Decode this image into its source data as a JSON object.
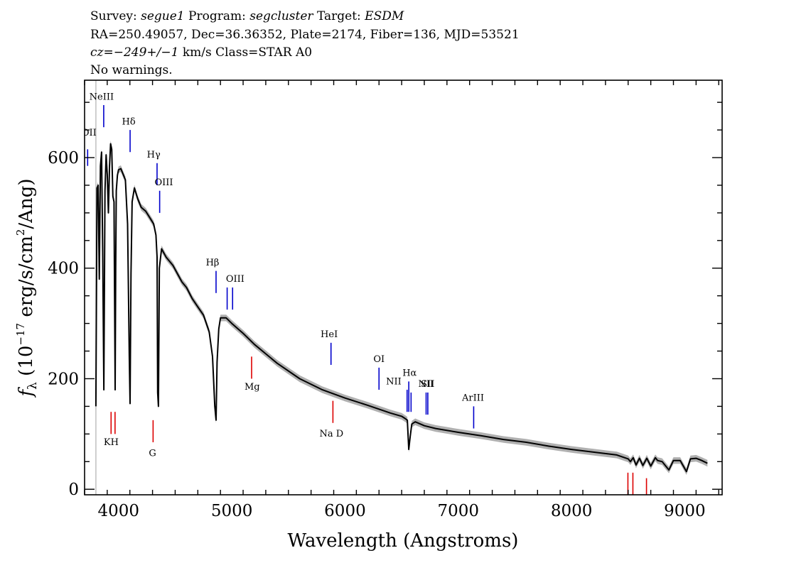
{
  "header": {
    "line1": {
      "survey_label": "Survey: ",
      "survey": "segue1",
      "program_label": " Program: ",
      "program": "segcluster",
      "target_label": " Target: ",
      "target": "ESDM"
    },
    "line2": "RA=250.49057, Dec=36.36352, Plate=2174, Fiber=136, MJD=53521",
    "line3": {
      "cz": "cz=−249+/−1",
      "rest": " km/s Class=STAR A0"
    },
    "line4": "No warnings."
  },
  "chart_data": {
    "type": "line",
    "title": "",
    "xlabel": "Wavelength (Angstroms)",
    "ylabel_prefix": "f",
    "ylabel_sub": "λ",
    "ylabel_unit_a": " (10",
    "ylabel_exp1": "−17",
    "ylabel_unit_b": " erg/s/cm",
    "ylabel_exp2": "2",
    "ylabel_unit_c": "/Ang)",
    "xlim": [
      3700,
      9330
    ],
    "ylim": [
      -10,
      740
    ],
    "x_ticks": [
      4000,
      5000,
      6000,
      7000,
      8000,
      9000
    ],
    "x_tick_labels": [
      "4000",
      "5000",
      "6000",
      "7000",
      "8000",
      "9000"
    ],
    "y_ticks": [
      0,
      200,
      400,
      600
    ],
    "y_tick_labels": [
      "0",
      "200",
      "400",
      "600"
    ],
    "grid": false,
    "colors": {
      "spectrum": "#000000",
      "error_band": "#b0b0b0",
      "emission": "#0000cc",
      "absorption": "#dd0000"
    },
    "spectrum": {
      "x": [
        3800,
        3810,
        3820,
        3830,
        3840,
        3850,
        3860,
        3870,
        3880,
        3890,
        3900,
        3910,
        3920,
        3930,
        3940,
        3950,
        3960,
        3965,
        3970,
        3975,
        3980,
        3990,
        4000,
        4020,
        4040,
        4060,
        4080,
        4095,
        4102,
        4110,
        4120,
        4140,
        4170,
        4200,
        4240,
        4280,
        4310,
        4330,
        4340,
        4345,
        4352,
        4360,
        4380,
        4420,
        4480,
        4520,
        4560,
        4600,
        4650,
        4700,
        4750,
        4800,
        4830,
        4850,
        4861,
        4870,
        4885,
        4900,
        4950,
        5000,
        5100,
        5200,
        5400,
        5600,
        5800,
        6000,
        6200,
        6400,
        6500,
        6530,
        6550,
        6563,
        6575,
        6590,
        6620,
        6700,
        6800,
        7000,
        7200,
        7400,
        7600,
        7800,
        8000,
        8200,
        8400,
        8500,
        8520,
        8545,
        8570,
        8600,
        8630,
        8665,
        8700,
        8740,
        8760,
        8800,
        8860,
        8900,
        8960,
        9015,
        9050,
        9100,
        9150,
        9200
      ],
      "y": [
        150,
        545,
        550,
        380,
        585,
        610,
        430,
        180,
        540,
        605,
        570,
        500,
        585,
        625,
        615,
        530,
        520,
        350,
        180,
        400,
        540,
        568,
        578,
        580,
        570,
        560,
        480,
        240,
        155,
        390,
        520,
        545,
        525,
        510,
        503,
        490,
        480,
        460,
        420,
        175,
        150,
        400,
        435,
        420,
        405,
        390,
        375,
        365,
        345,
        330,
        315,
        285,
        240,
        150,
        125,
        230,
        290,
        310,
        310,
        300,
        282,
        262,
        228,
        200,
        180,
        165,
        152,
        138,
        132,
        128,
        125,
        72,
        95,
        118,
        122,
        115,
        110,
        103,
        97,
        90,
        85,
        78,
        72,
        67,
        62,
        55,
        50,
        57,
        44,
        56,
        43,
        56,
        42,
        57,
        52,
        50,
        35,
        52,
        52,
        32,
        55,
        56,
        52,
        47
      ]
    },
    "lines": [
      {
        "name": "OII",
        "x": 3727,
        "y0": 585,
        "y1": 615,
        "label_y": 640,
        "label_x": 3740,
        "color": "emission"
      },
      {
        "name": "NeIII",
        "x": 3869,
        "y0": 655,
        "y1": 695,
        "label_y": 705,
        "label_x": 3850,
        "color": "emission"
      },
      {
        "name": "Hδ",
        "x": 4102,
        "y0": 610,
        "y1": 650,
        "label_y": 660,
        "label_x": 4090,
        "color": "emission"
      },
      {
        "name": "Hγ",
        "x": 4340,
        "y0": 550,
        "y1": 590,
        "label_y": 600,
        "label_x": 4310,
        "color": "emission"
      },
      {
        "name": "OIII",
        "x": 4363,
        "y0": 500,
        "y1": 540,
        "label_y": 550,
        "label_x": 4400,
        "color": "emission"
      },
      {
        "name": "Hβ",
        "x": 4861,
        "y0": 355,
        "y1": 395,
        "label_y": 405,
        "label_x": 4830,
        "color": "emission"
      },
      {
        "name": "OIII",
        "x": 4959,
        "y0": 325,
        "y1": 365,
        "label_y": 375,
        "label_x": 5030,
        "color": "emission"
      },
      {
        "name": "",
        "x": 5007,
        "y0": 325,
        "y1": 365,
        "label_y": 0,
        "label_x": 0,
        "color": "emission"
      },
      {
        "name": "HeI",
        "x": 5876,
        "y0": 225,
        "y1": 265,
        "label_y": 275,
        "label_x": 5860,
        "color": "emission"
      },
      {
        "name": "OI",
        "x": 6300,
        "y0": 180,
        "y1": 220,
        "label_y": 230,
        "label_x": 6300,
        "color": "emission"
      },
      {
        "name": "NII",
        "x": 6548,
        "y0": 140,
        "y1": 180,
        "label_y": 190,
        "label_x": 6430,
        "color": "emission"
      },
      {
        "name": "Hα",
        "x": 6563,
        "y0": 140,
        "y1": 195,
        "label_y": 205,
        "label_x": 6570,
        "color": "emission"
      },
      {
        "name": "NII",
        "x": 6583,
        "y0": 140,
        "y1": 175,
        "label_y": 185,
        "label_x": 6715,
        "color": "emission"
      },
      {
        "name": "SII",
        "x": 6716,
        "y0": 135,
        "y1": 175,
        "label_y": 185,
        "label_x": 6730,
        "color": "emission"
      },
      {
        "name": "",
        "x": 6731,
        "y0": 135,
        "y1": 175,
        "label_y": 0,
        "label_x": 0,
        "color": "emission"
      },
      {
        "name": "ArIII",
        "x": 7136,
        "y0": 110,
        "y1": 150,
        "label_y": 160,
        "label_x": 7130,
        "color": "emission"
      },
      {
        "name": "",
        "x": 3934,
        "y0": 100,
        "y1": 140,
        "label_y": 0,
        "label_x": 0,
        "color": "absorption"
      },
      {
        "name": "KH",
        "x": 3969,
        "y0": 100,
        "y1": 140,
        "label_y": 80,
        "label_x": 3935,
        "color": "absorption"
      },
      {
        "name": "G",
        "x": 4305,
        "y0": 85,
        "y1": 125,
        "label_y": 60,
        "label_x": 4300,
        "color": "absorption"
      },
      {
        "name": "Mg",
        "x": 5175,
        "y0": 200,
        "y1": 240,
        "label_y": 180,
        "label_x": 5180,
        "color": "absorption"
      },
      {
        "name": "Na D",
        "x": 5893,
        "y0": 120,
        "y1": 160,
        "label_y": 95,
        "label_x": 5880,
        "color": "absorption"
      },
      {
        "name": "",
        "x": 8498,
        "y0": -10,
        "y1": 30,
        "label_y": 0,
        "label_x": 0,
        "color": "absorption"
      },
      {
        "name": "",
        "x": 8542,
        "y0": -10,
        "y1": 30,
        "label_y": 0,
        "label_x": 0,
        "color": "absorption"
      },
      {
        "name": "",
        "x": 8662,
        "y0": -10,
        "y1": 20,
        "label_y": 0,
        "label_x": 0,
        "color": "absorption"
      }
    ],
    "reference_line_x": 3800
  }
}
